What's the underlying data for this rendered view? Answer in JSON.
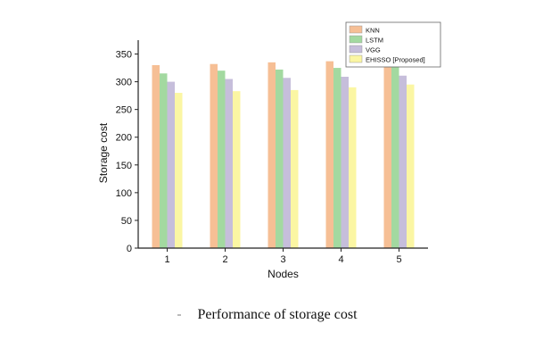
{
  "chart_data": {
    "type": "bar",
    "title": "",
    "xlabel": "Nodes",
    "ylabel": "Storage cost",
    "categories": [
      "1",
      "2",
      "3",
      "4",
      "5"
    ],
    "ylim": [
      0,
      375
    ],
    "yticks": [
      0,
      50,
      100,
      150,
      200,
      250,
      300,
      350
    ],
    "grid": false,
    "legend_position": "top-right",
    "series": [
      {
        "name": "KNN",
        "color": "#f6bf95",
        "values": [
          330,
          332,
          335,
          337,
          340
        ]
      },
      {
        "name": "LSTM",
        "color": "#a3d9a0",
        "values": [
          315,
          320,
          322,
          325,
          327
        ]
      },
      {
        "name": "VGG",
        "color": "#c6bedb",
        "values": [
          300,
          305,
          307,
          309,
          311
        ]
      },
      {
        "name": "EHISSO [Proposed]",
        "color": "#fbf6a3",
        "values": [
          280,
          283,
          285,
          290,
          295
        ]
      }
    ]
  },
  "caption": "Performance of storage cost"
}
